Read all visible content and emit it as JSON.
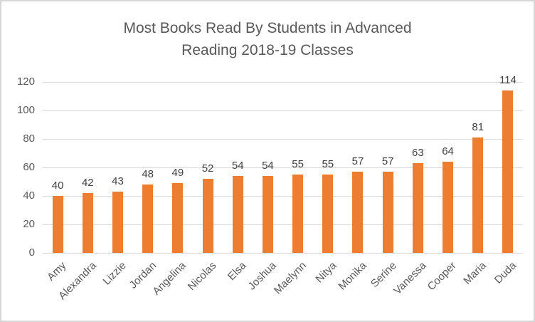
{
  "chart_data": {
    "type": "bar",
    "title": "Most Books Read By Students in Advanced Reading 2018-19 Classes",
    "categories": [
      "Amy",
      "Alexandra",
      "Lizzie",
      "Jordan",
      "Angelina",
      "Nicolas",
      "Elsa",
      "Joshua",
      "Maelynn",
      "Nitya",
      "Monika",
      "Serine",
      "Vanessa",
      "Cooper",
      "Maria",
      "Duda"
    ],
    "values": [
      40,
      42,
      43,
      48,
      49,
      52,
      54,
      54,
      55,
      55,
      57,
      57,
      63,
      64,
      81,
      114
    ],
    "xlabel": "",
    "ylabel": "",
    "ylim": [
      0,
      120
    ],
    "yticks": [
      0,
      20,
      40,
      60,
      80,
      100,
      120
    ],
    "grid": true,
    "legend": "none",
    "data_labels": true,
    "colors": {
      "bar": "#ED7D31",
      "gridline": "#D9D9D9",
      "axis_text": "#595959",
      "value_label": "#404040",
      "title_text": "#595959",
      "frame_border": "#D6D6D6",
      "background": "#FFFFFF"
    }
  }
}
